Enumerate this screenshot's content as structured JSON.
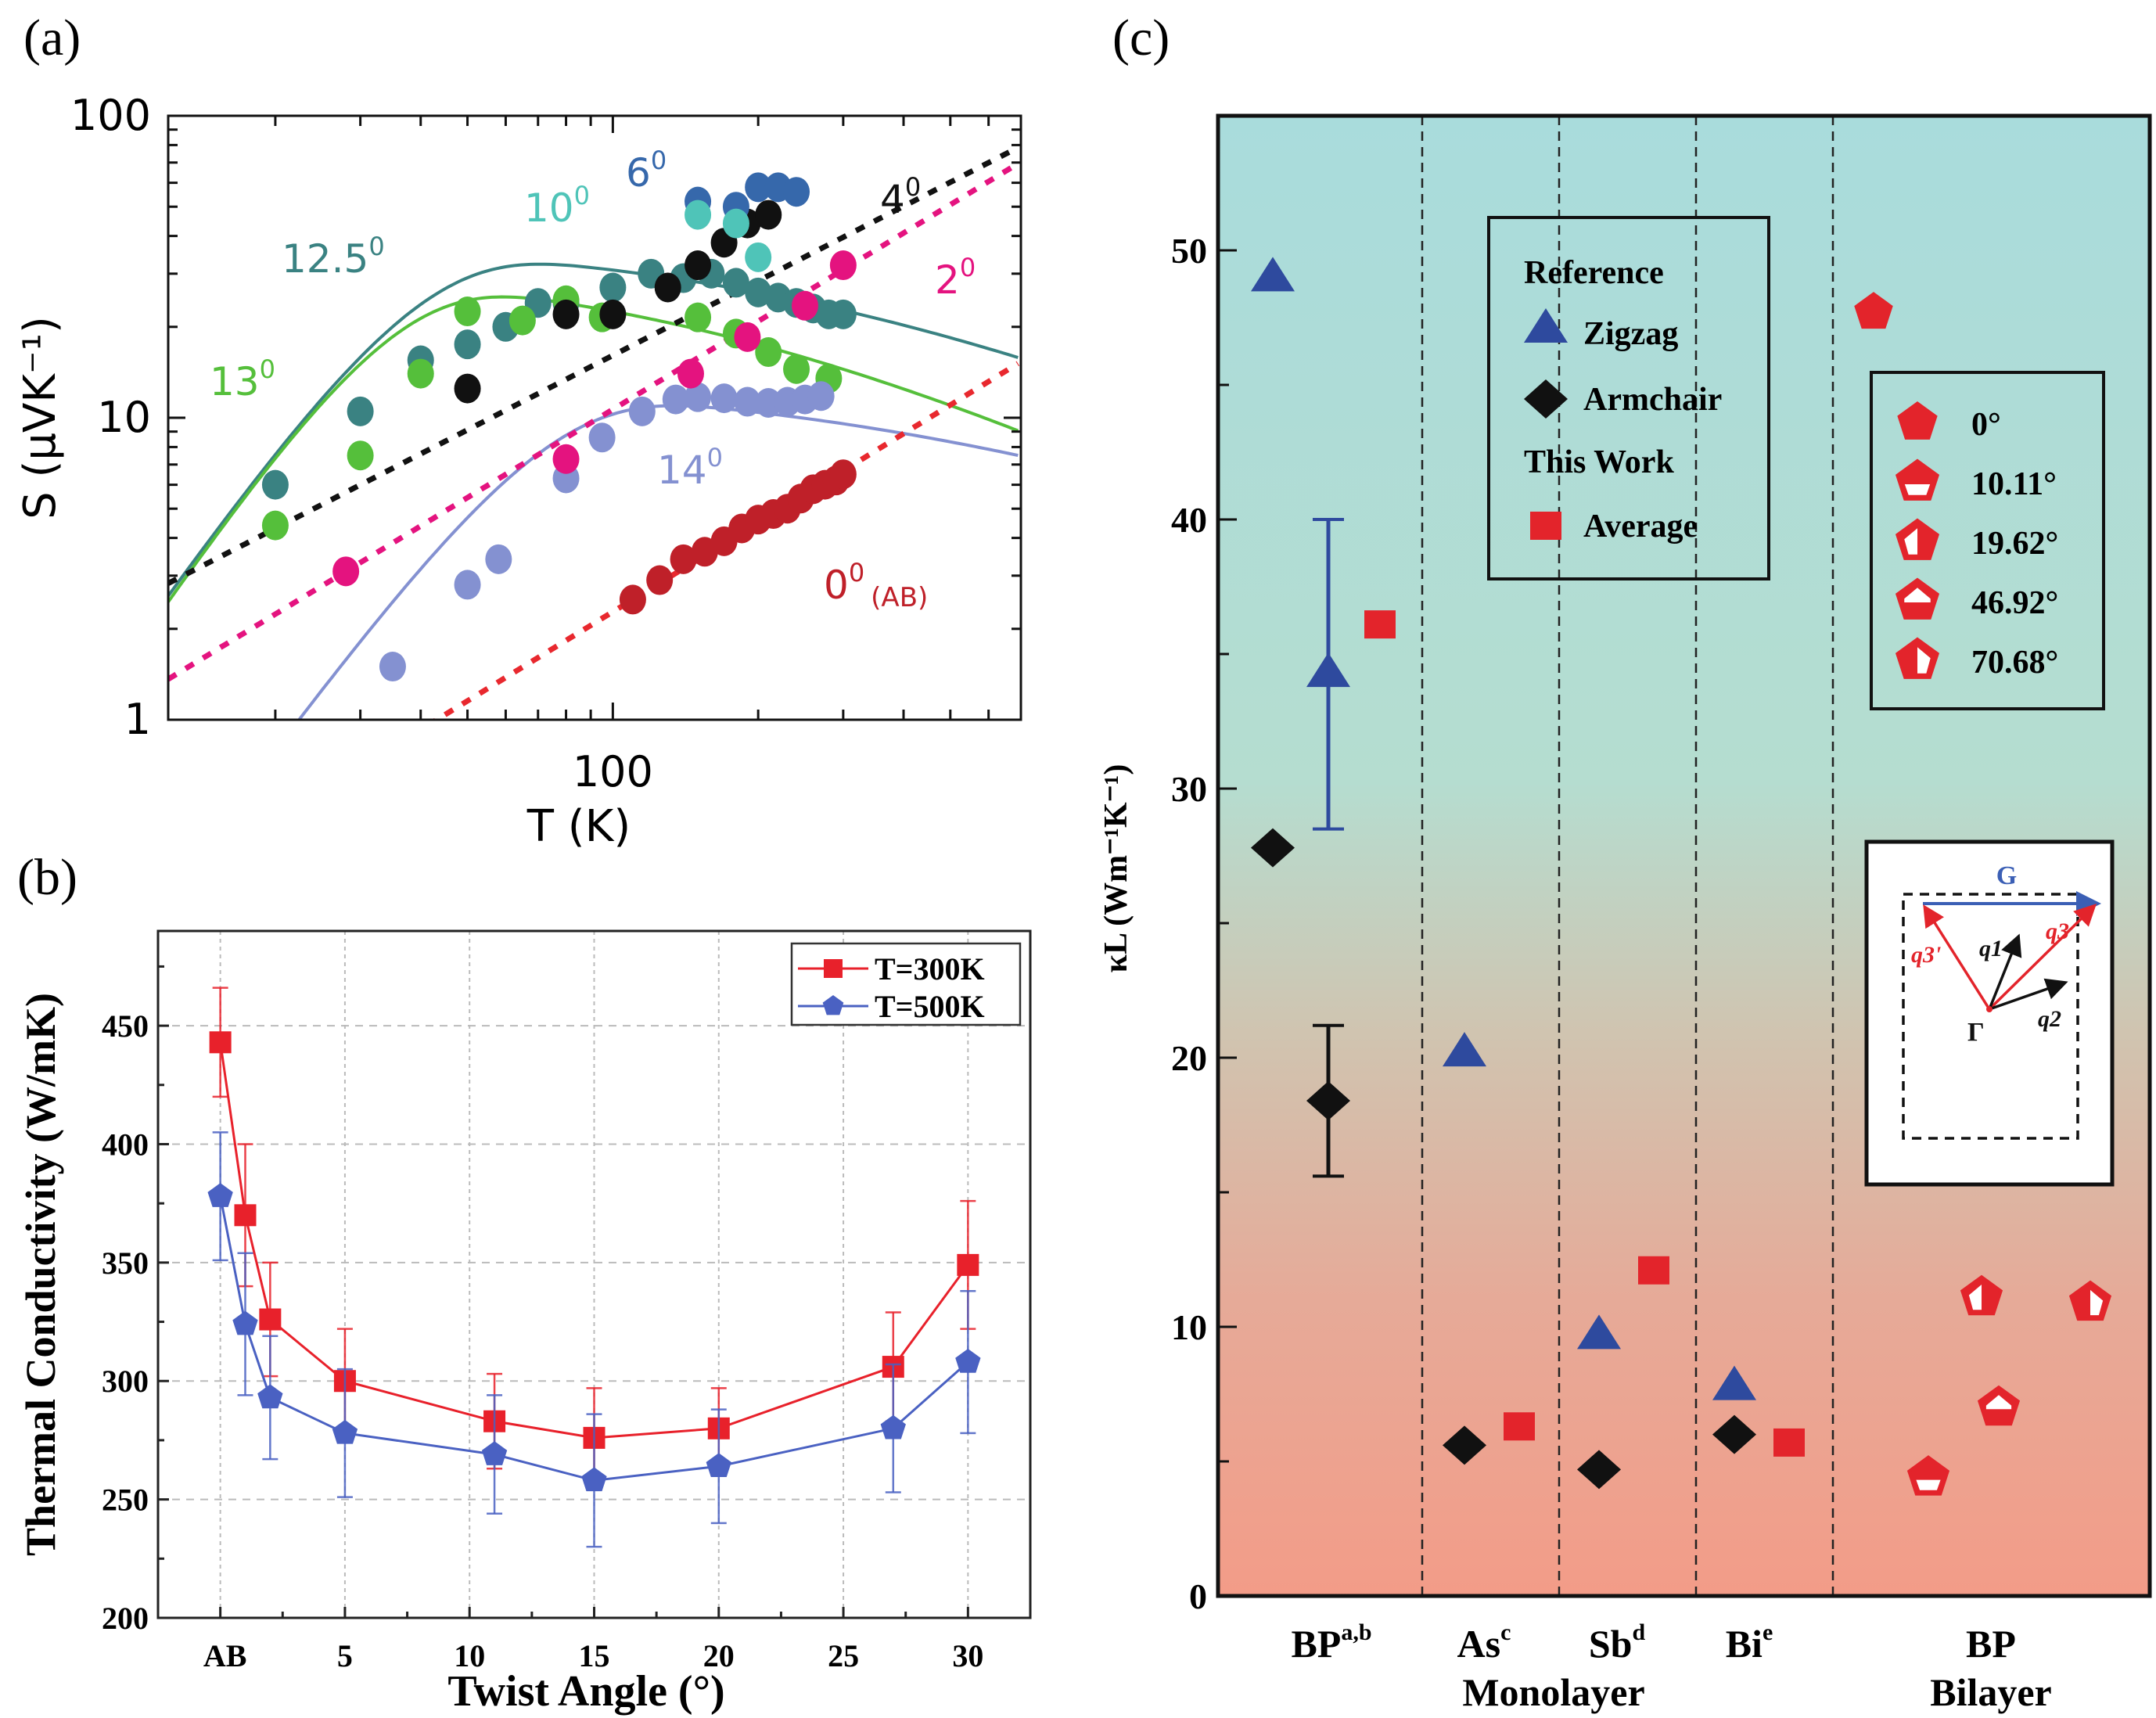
{
  "chart_data": [
    {
      "id": "a",
      "panel_label": "(a)",
      "type": "scatter",
      "xlabel": "T (K)",
      "ylabel": "S (μVK⁻¹)",
      "xscale": "log",
      "yscale": "log",
      "xlim": [
        12,
        700
      ],
      "ylim": [
        1,
        100
      ],
      "x_tick_labels": [
        "100"
      ],
      "y_tick_labels": [
        "1",
        "10",
        "100"
      ],
      "series": [
        {
          "name": "12.5°",
          "label_main": "12.5",
          "label_sup": "0",
          "color": "#3a8282",
          "fit": "solid",
          "x": [
            20,
            30,
            40,
            50,
            60,
            70,
            80,
            100,
            120,
            140,
            160,
            180,
            200,
            220,
            240,
            260,
            280,
            300
          ],
          "y": [
            6.0,
            10.5,
            15.5,
            17.5,
            20,
            24,
            24,
            27,
            30,
            29,
            30,
            28,
            26,
            25,
            24,
            23,
            22,
            22
          ]
        },
        {
          "name": "13°",
          "label_main": "13",
          "label_sup": "0",
          "color": "#55bf3b",
          "fit": "solid",
          "x": [
            20,
            30,
            40,
            50,
            65,
            80,
            95,
            150,
            180,
            210,
            240,
            280
          ],
          "y": [
            4.4,
            7.5,
            14.0,
            22.5,
            21.0,
            24.5,
            21.5,
            21.5,
            19.0,
            16.5,
            14.5,
            13.5
          ]
        },
        {
          "name": "14°",
          "label_main": "14",
          "label_sup": "0",
          "color": "#8491d1",
          "fit": "solid",
          "x": [
            35,
            50,
            58,
            80,
            95,
            115,
            135,
            150,
            170,
            190,
            210,
            230,
            250,
            270
          ],
          "y": [
            1.5,
            2.8,
            3.4,
            6.3,
            8.6,
            10.5,
            11.5,
            11.7,
            11.6,
            11.3,
            11.2,
            11.3,
            11.5,
            11.8
          ]
        },
        {
          "name": "2°",
          "label_main": "2",
          "label_sup": "0",
          "color": "#e4137f",
          "fit": "dotted",
          "x": [
            28,
            80,
            145,
            190,
            250,
            300
          ],
          "y": [
            3.1,
            7.3,
            14.0,
            18.5,
            23.5,
            32.0
          ]
        },
        {
          "name": "4°",
          "label_main": "4",
          "label_sup": "0",
          "color": "#111111",
          "fit": "dotted",
          "x": [
            50,
            80,
            100,
            130,
            150,
            170,
            190,
            210
          ],
          "y": [
            12.5,
            22.0,
            22.0,
            27.0,
            32.0,
            38.0,
            44.0,
            47.0
          ]
        },
        {
          "name": "6°",
          "label_main": "6",
          "label_sup": "0",
          "color": "#3668ab",
          "fit": "none",
          "x": [
            150,
            180,
            200,
            220,
            240
          ],
          "y": [
            52,
            50,
            58,
            58,
            56
          ]
        },
        {
          "name": "10°",
          "label_main": "10",
          "label_sup": "0",
          "color": "#4fc4b8",
          "fit": "none",
          "x": [
            150,
            180,
            200
          ],
          "y": [
            47,
            44,
            34
          ]
        },
        {
          "name": "0° (AB)",
          "label_main": "0",
          "label_sup": "0",
          "label_sub": "(AB)",
          "color": "#bf2029",
          "fit": "dotted",
          "x": [
            110,
            125,
            140,
            155,
            170,
            185,
            200,
            215,
            230,
            245,
            260,
            275,
            290,
            300
          ],
          "y": [
            2.5,
            2.9,
            3.4,
            3.6,
            3.9,
            4.3,
            4.6,
            4.8,
            5.0,
            5.4,
            5.8,
            6.0,
            6.2,
            6.5
          ]
        }
      ]
    },
    {
      "id": "b",
      "panel_label": "(b)",
      "type": "line",
      "xlabel": "Twist Angle (°)",
      "ylabel": "Thermal Conductivity (W/mK)",
      "xlim": [
        -2.5,
        32.5
      ],
      "ylim": [
        200,
        490
      ],
      "x_ticks": [
        0,
        5,
        10,
        15,
        20,
        25,
        30
      ],
      "x_tick_labels": [
        "AB",
        "5",
        "10",
        "15",
        "20",
        "25",
        "30"
      ],
      "y_ticks": [
        200,
        250,
        300,
        350,
        400,
        450
      ],
      "y_tick_labels": [
        "200",
        "250",
        "300",
        "350",
        "400",
        "450"
      ],
      "grid": true,
      "legend_position": "top-right",
      "x": [
        0,
        1,
        2,
        5,
        11,
        15,
        20,
        27,
        30
      ],
      "series": [
        {
          "name": "T=300K",
          "color": "#e8212b",
          "marker": "square",
          "values": [
            443,
            370,
            326,
            300,
            283,
            276,
            280,
            306,
            349
          ],
          "err": [
            23,
            30,
            24,
            22,
            20,
            21,
            17,
            23,
            27
          ]
        },
        {
          "name": "T=500K",
          "color": "#4a61c2",
          "marker": "pentagon",
          "values": [
            378,
            324,
            293,
            278,
            269,
            258,
            264,
            280,
            308
          ],
          "err": [
            27,
            30,
            26,
            27,
            25,
            28,
            24,
            27,
            30
          ]
        }
      ]
    },
    {
      "id": "c",
      "panel_label": "(c)",
      "type": "scatter",
      "ylabel": "κL (Wm⁻¹K⁻¹)",
      "ylim": [
        0,
        55
      ],
      "y_ticks": [
        0,
        10,
        20,
        30,
        40,
        50
      ],
      "y_tick_labels": [
        "0",
        "10",
        "20",
        "30",
        "40",
        "50"
      ],
      "groups": [
        {
          "label": "BP",
          "sup": "a,b"
        },
        {
          "label": "As",
          "sup": "c"
        },
        {
          "label": "Sb",
          "sup": "d"
        },
        {
          "label": "Bi",
          "sup": "e"
        },
        {
          "label": "BP",
          "sup": ""
        }
      ],
      "group_captions": [
        {
          "text": "Monolayer",
          "span": "As-Sb"
        },
        {
          "text": "Bilayer",
          "span": "BP"
        }
      ],
      "legend": {
        "reference_title": "Reference",
        "this_work_title": "This Work",
        "entries": [
          {
            "name": "Zigzag",
            "marker": "triangle",
            "color": "#2e4a9e"
          },
          {
            "name": "Armchair",
            "marker": "diamond",
            "color": "#111111"
          },
          {
            "name": "Average",
            "marker": "square",
            "color": "#e3242b"
          }
        ]
      },
      "angle_legend": [
        {
          "label": "0°",
          "fill": "full"
        },
        {
          "label": "10.11°",
          "fill": "bottom-white"
        },
        {
          "label": "19.62°",
          "fill": "left-white"
        },
        {
          "label": "46.92°",
          "fill": "top-white"
        },
        {
          "label": "70.68°",
          "fill": "right-white"
        }
      ],
      "points": [
        {
          "group": "BP",
          "series": "Zigzag",
          "slot": 0,
          "value": 49.0
        },
        {
          "group": "BP",
          "series": "Armchair",
          "slot": 0,
          "value": 27.8
        },
        {
          "group": "BP",
          "series": "Zigzag",
          "slot": 1,
          "value": 34.3,
          "err_low": 28.5,
          "err_high": 40.0
        },
        {
          "group": "BP",
          "series": "Armchair",
          "slot": 1,
          "value": 18.4,
          "err_low": 15.6,
          "err_high": 21.2
        },
        {
          "group": "BP",
          "series": "Average",
          "slot": 2,
          "value": 36.1
        },
        {
          "group": "As",
          "series": "Zigzag",
          "slot": 0,
          "value": 20.2
        },
        {
          "group": "As",
          "series": "Armchair",
          "slot": 0,
          "value": 5.6
        },
        {
          "group": "As",
          "series": "Average",
          "slot": 1,
          "value": 6.3
        },
        {
          "group": "Sb",
          "series": "Zigzag",
          "slot": 0,
          "value": 9.7
        },
        {
          "group": "Sb",
          "series": "Armchair",
          "slot": 0,
          "value": 4.7
        },
        {
          "group": "Sb",
          "series": "Average",
          "slot": 1,
          "value": 12.1
        },
        {
          "group": "Bi",
          "series": "Zigzag",
          "slot": 0,
          "value": 7.8
        },
        {
          "group": "Bi",
          "series": "Armchair",
          "slot": 0,
          "value": 6.0
        },
        {
          "group": "Bi",
          "series": "Average",
          "slot": 1,
          "value": 5.7
        },
        {
          "group": "BP Bilayer",
          "series": "0°",
          "value": 47.7
        },
        {
          "group": "BP Bilayer",
          "series": "10.11°",
          "value": 4.4
        },
        {
          "group": "BP Bilayer",
          "series": "19.62°",
          "value": 11.1
        },
        {
          "group": "BP Bilayer",
          "series": "46.92°",
          "value": 7.0
        },
        {
          "group": "BP Bilayer",
          "series": "70.68°",
          "value": 10.9
        }
      ],
      "inset": {
        "labels": [
          "G",
          "q3",
          "q3'",
          "q1",
          "q2",
          "Γ"
        ],
        "colors": {
          "G": "#3b5fb5",
          "q3": "#e3242b",
          "q3'": "#e3242b",
          "q1": "#111111",
          "q2": "#111111"
        }
      }
    }
  ]
}
